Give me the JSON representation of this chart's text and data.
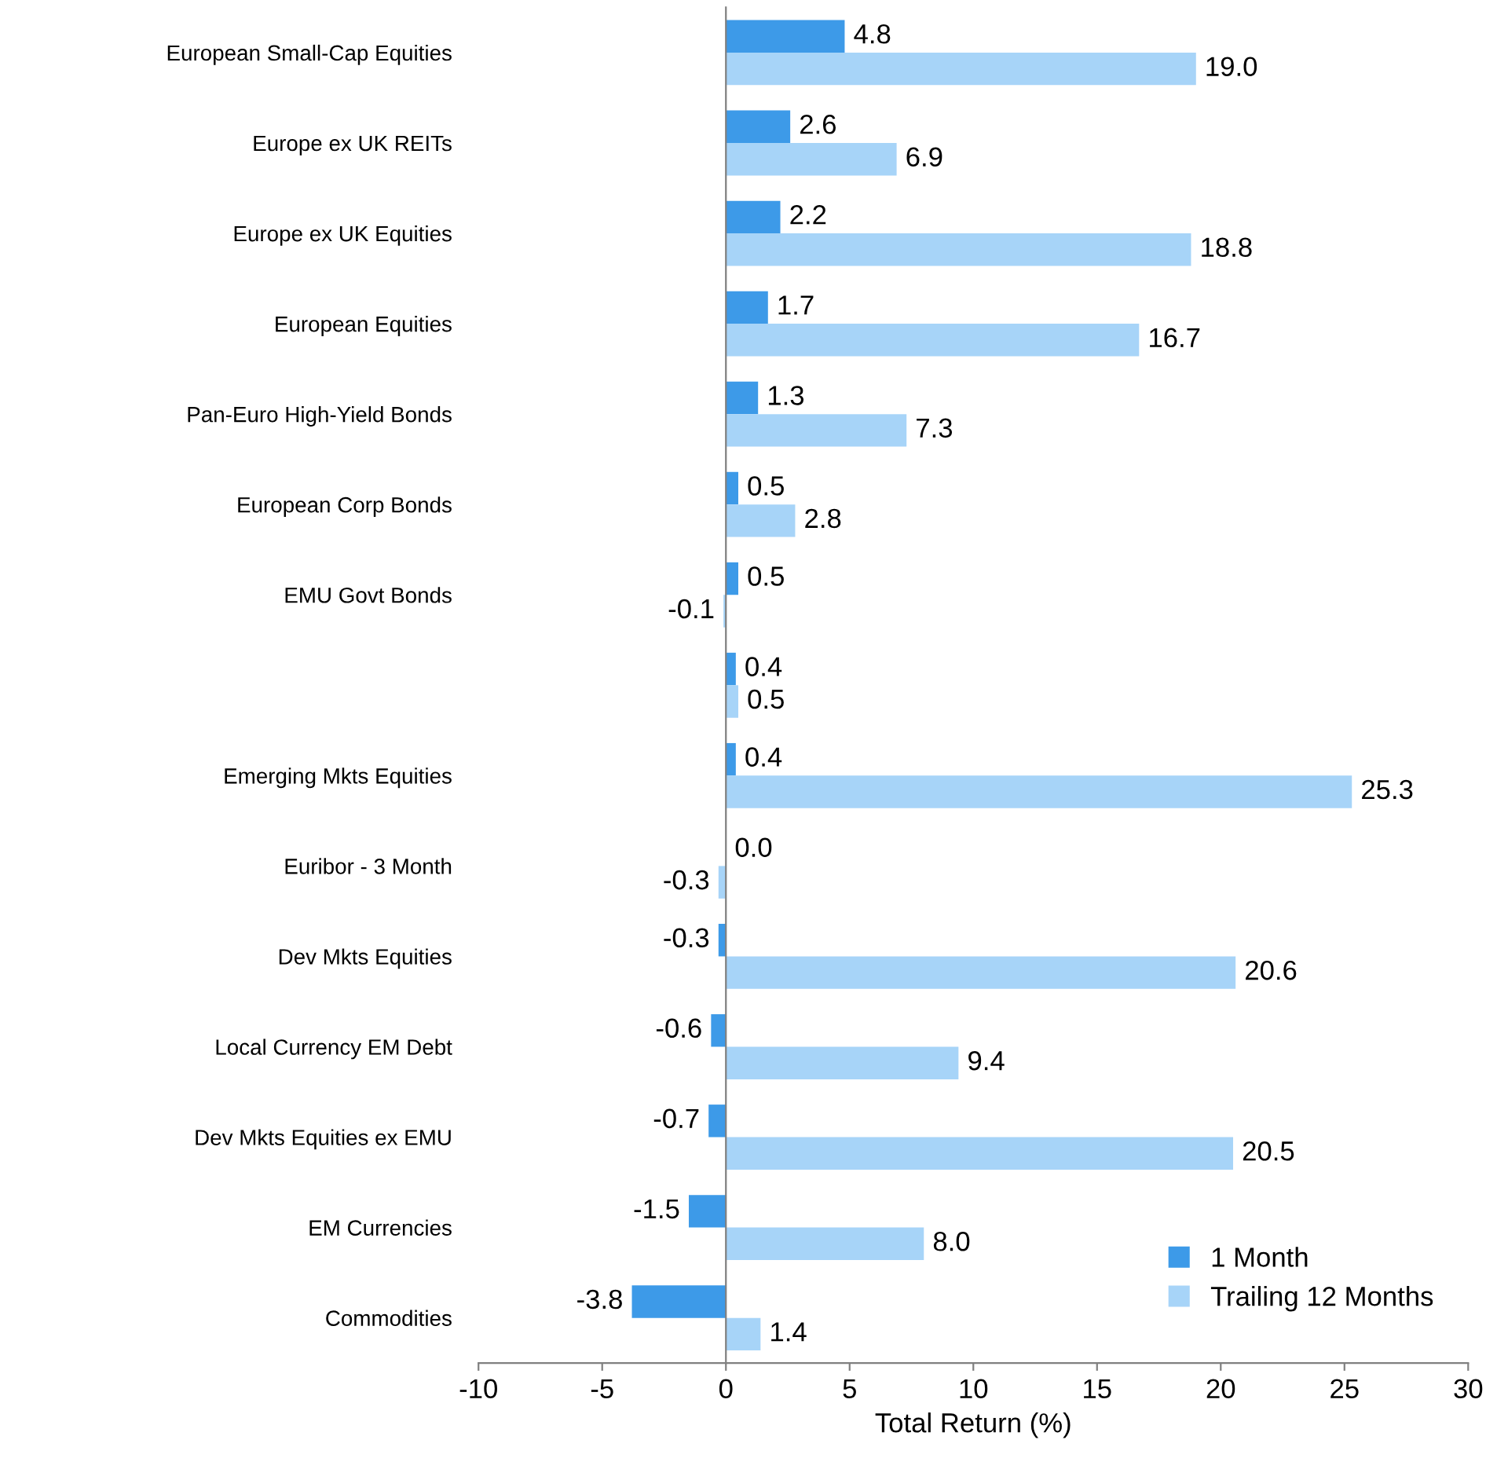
{
  "chart_data": {
    "type": "bar",
    "orientation": "horizontal",
    "xlabel": "Total Return (%)",
    "categories": [
      "European Small-Cap Equities",
      "Europe ex UK REITs",
      "Europe ex UK Equities",
      "European Equities",
      "Pan-Euro High-Yield Bonds",
      "European Corp Bonds",
      "EMU Govt Bonds",
      null,
      "Emerging Mkts Equities",
      "Euribor - 3 Month",
      "Dev Mkts Equities",
      "Local Currency EM Debt",
      "Dev Mkts Equities ex EMU",
      "EM Currencies",
      "Commodities"
    ],
    "series": [
      {
        "name": "1 Month",
        "color": "#3d9ae8",
        "values": [
          4.8,
          2.6,
          2.2,
          1.7,
          1.3,
          0.5,
          0.5,
          0.4,
          0.4,
          0,
          -0.3,
          -0.6,
          -0.7,
          -1.5,
          -3.8
        ],
        "value_labels": [
          "4.8",
          "2.6",
          "2.2",
          "1.7",
          "1.3",
          "0.5",
          "0.5",
          "0.4",
          "0.4",
          "0.0",
          "-0.3",
          "-0.6",
          "-0.7",
          "-1.5",
          "-3.8"
        ]
      },
      {
        "name": "Trailing 12 Months",
        "color": "#a7d4f8",
        "values": [
          19,
          6.9,
          18.8,
          16.7,
          7.3,
          2.8,
          -0.1,
          0.5,
          25.3,
          -0.3,
          20.6,
          9.4,
          20.5,
          8,
          1.4
        ],
        "value_labels": [
          "19.0",
          "6.9",
          "18.8",
          "16.7",
          "7.3",
          "2.8",
          "-0.1",
          "0.5",
          "25.3",
          "-0.3",
          "20.6",
          "9.4",
          "20.5",
          "8.0",
          "1.4"
        ]
      }
    ],
    "xlim": [
      -10,
      30
    ],
    "xticks": [
      -10,
      -5,
      0,
      5,
      10,
      15,
      20,
      25,
      30
    ],
    "legend": "bottom right"
  }
}
